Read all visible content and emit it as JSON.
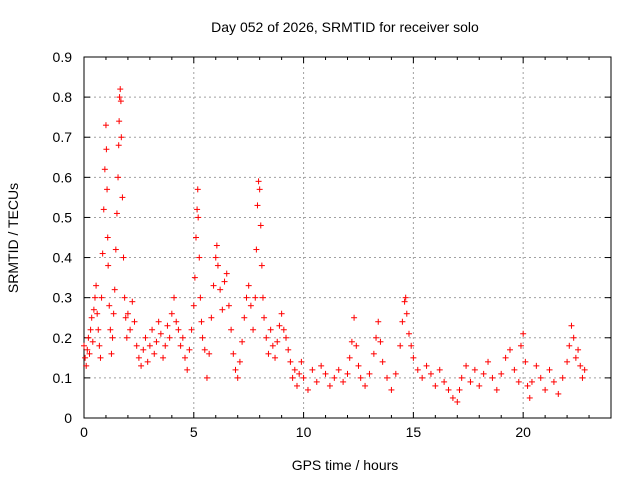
{
  "chart_data": {
    "type": "scatter",
    "title": "Day 052 of 2026, SRMTID for receiver solo",
    "xlabel": "GPS time / hours",
    "ylabel": "SRMTID / TECUs",
    "xlim": [
      0,
      24
    ],
    "ylim": [
      0,
      0.9
    ],
    "xticks": [
      0,
      5,
      10,
      15,
      20
    ],
    "yticks": [
      0,
      0.1,
      0.2,
      0.3,
      0.4,
      0.5,
      0.6,
      0.7,
      0.8,
      0.9
    ],
    "xtick_labels": [
      "0",
      "5",
      "10",
      "15",
      "20"
    ],
    "ytick_labels": [
      "0",
      "0.1",
      "0.2",
      "0.3",
      "0.4",
      "0.5",
      "0.6",
      "0.7",
      "0.8",
      "0.9"
    ],
    "grid": true,
    "marker": "+",
    "series": [
      {
        "name": "SRMTID",
        "color": "#ff0000",
        "points": [
          [
            0.0,
            0.18
          ],
          [
            0.05,
            0.15
          ],
          [
            0.1,
            0.13
          ],
          [
            0.15,
            0.17
          ],
          [
            0.2,
            0.2
          ],
          [
            0.25,
            0.16
          ],
          [
            0.3,
            0.22
          ],
          [
            0.35,
            0.25
          ],
          [
            0.4,
            0.19
          ],
          [
            0.45,
            0.27
          ],
          [
            0.5,
            0.3
          ],
          [
            0.55,
            0.33
          ],
          [
            0.6,
            0.26
          ],
          [
            0.65,
            0.22
          ],
          [
            0.7,
            0.18
          ],
          [
            0.75,
            0.15
          ],
          [
            0.8,
            0.3
          ],
          [
            0.85,
            0.41
          ],
          [
            0.9,
            0.52
          ],
          [
            0.95,
            0.62
          ],
          [
            1.0,
            0.73
          ],
          [
            1.02,
            0.67
          ],
          [
            1.05,
            0.57
          ],
          [
            1.08,
            0.45
          ],
          [
            1.1,
            0.38
          ],
          [
            1.15,
            0.28
          ],
          [
            1.2,
            0.22
          ],
          [
            1.25,
            0.16
          ],
          [
            1.3,
            0.2
          ],
          [
            1.35,
            0.26
          ],
          [
            1.4,
            0.32
          ],
          [
            1.45,
            0.42
          ],
          [
            1.5,
            0.51
          ],
          [
            1.55,
            0.6
          ],
          [
            1.58,
            0.68
          ],
          [
            1.6,
            0.74
          ],
          [
            1.62,
            0.8
          ],
          [
            1.65,
            0.82
          ],
          [
            1.68,
            0.79
          ],
          [
            1.7,
            0.7
          ],
          [
            1.75,
            0.55
          ],
          [
            1.8,
            0.4
          ],
          [
            1.85,
            0.3
          ],
          [
            1.9,
            0.25
          ],
          [
            1.95,
            0.2
          ],
          [
            2.0,
            0.26
          ],
          [
            2.1,
            0.22
          ],
          [
            2.2,
            0.29
          ],
          [
            2.3,
            0.24
          ],
          [
            2.4,
            0.18
          ],
          [
            2.5,
            0.15
          ],
          [
            2.6,
            0.13
          ],
          [
            2.7,
            0.17
          ],
          [
            2.8,
            0.2
          ],
          [
            2.9,
            0.14
          ],
          [
            3.0,
            0.18
          ],
          [
            3.1,
            0.22
          ],
          [
            3.2,
            0.16
          ],
          [
            3.3,
            0.19
          ],
          [
            3.4,
            0.24
          ],
          [
            3.5,
            0.21
          ],
          [
            3.6,
            0.15
          ],
          [
            3.7,
            0.18
          ],
          [
            3.8,
            0.23
          ],
          [
            3.9,
            0.2
          ],
          [
            4.0,
            0.26
          ],
          [
            4.1,
            0.3
          ],
          [
            4.2,
            0.24
          ],
          [
            4.3,
            0.22
          ],
          [
            4.4,
            0.18
          ],
          [
            4.5,
            0.2
          ],
          [
            4.6,
            0.15
          ],
          [
            4.7,
            0.12
          ],
          [
            4.8,
            0.17
          ],
          [
            4.9,
            0.22
          ],
          [
            5.0,
            0.28
          ],
          [
            5.05,
            0.35
          ],
          [
            5.1,
            0.45
          ],
          [
            5.15,
            0.52
          ],
          [
            5.18,
            0.57
          ],
          [
            5.2,
            0.5
          ],
          [
            5.25,
            0.4
          ],
          [
            5.3,
            0.3
          ],
          [
            5.35,
            0.24
          ],
          [
            5.4,
            0.2
          ],
          [
            5.5,
            0.17
          ],
          [
            5.6,
            0.1
          ],
          [
            5.7,
            0.16
          ],
          [
            5.8,
            0.25
          ],
          [
            5.9,
            0.33
          ],
          [
            6.0,
            0.4
          ],
          [
            6.05,
            0.43
          ],
          [
            6.1,
            0.38
          ],
          [
            6.2,
            0.32
          ],
          [
            6.3,
            0.27
          ],
          [
            6.4,
            0.34
          ],
          [
            6.5,
            0.36
          ],
          [
            6.6,
            0.28
          ],
          [
            6.7,
            0.22
          ],
          [
            6.8,
            0.16
          ],
          [
            6.9,
            0.12
          ],
          [
            7.0,
            0.1
          ],
          [
            7.1,
            0.14
          ],
          [
            7.2,
            0.19
          ],
          [
            7.3,
            0.25
          ],
          [
            7.4,
            0.3
          ],
          [
            7.5,
            0.33
          ],
          [
            7.6,
            0.28
          ],
          [
            7.7,
            0.22
          ],
          [
            7.8,
            0.3
          ],
          [
            7.85,
            0.42
          ],
          [
            7.9,
            0.53
          ],
          [
            7.95,
            0.59
          ],
          [
            8.0,
            0.57
          ],
          [
            8.05,
            0.48
          ],
          [
            8.1,
            0.38
          ],
          [
            8.15,
            0.3
          ],
          [
            8.2,
            0.25
          ],
          [
            8.3,
            0.2
          ],
          [
            8.4,
            0.16
          ],
          [
            8.5,
            0.22
          ],
          [
            8.6,
            0.18
          ],
          [
            8.7,
            0.15
          ],
          [
            8.8,
            0.19
          ],
          [
            8.9,
            0.23
          ],
          [
            9.0,
            0.26
          ],
          [
            9.1,
            0.22
          ],
          [
            9.2,
            0.2
          ],
          [
            9.3,
            0.17
          ],
          [
            9.4,
            0.14
          ],
          [
            9.5,
            0.1
          ],
          [
            9.6,
            0.12
          ],
          [
            9.7,
            0.08
          ],
          [
            9.8,
            0.11
          ],
          [
            9.9,
            0.14
          ],
          [
            10.0,
            0.1
          ],
          [
            10.2,
            0.07
          ],
          [
            10.4,
            0.12
          ],
          [
            10.6,
            0.09
          ],
          [
            10.8,
            0.13
          ],
          [
            11.0,
            0.11
          ],
          [
            11.2,
            0.08
          ],
          [
            11.4,
            0.1
          ],
          [
            11.6,
            0.12
          ],
          [
            11.8,
            0.09
          ],
          [
            12.0,
            0.11
          ],
          [
            12.1,
            0.15
          ],
          [
            12.2,
            0.19
          ],
          [
            12.3,
            0.25
          ],
          [
            12.4,
            0.18
          ],
          [
            12.5,
            0.13
          ],
          [
            12.6,
            0.1
          ],
          [
            12.8,
            0.08
          ],
          [
            13.0,
            0.11
          ],
          [
            13.2,
            0.16
          ],
          [
            13.3,
            0.2
          ],
          [
            13.4,
            0.24
          ],
          [
            13.5,
            0.19
          ],
          [
            13.6,
            0.14
          ],
          [
            13.8,
            0.1
          ],
          [
            14.0,
            0.07
          ],
          [
            14.2,
            0.11
          ],
          [
            14.4,
            0.18
          ],
          [
            14.5,
            0.24
          ],
          [
            14.6,
            0.29
          ],
          [
            14.65,
            0.3
          ],
          [
            14.7,
            0.26
          ],
          [
            14.8,
            0.21
          ],
          [
            14.9,
            0.18
          ],
          [
            15.0,
            0.15
          ],
          [
            15.2,
            0.12
          ],
          [
            15.4,
            0.1
          ],
          [
            15.6,
            0.13
          ],
          [
            15.8,
            0.11
          ],
          [
            16.0,
            0.08
          ],
          [
            16.2,
            0.12
          ],
          [
            16.4,
            0.09
          ],
          [
            16.6,
            0.07
          ],
          [
            16.8,
            0.05
          ],
          [
            17.0,
            0.04
          ],
          [
            17.1,
            0.07
          ],
          [
            17.2,
            0.1
          ],
          [
            17.4,
            0.13
          ],
          [
            17.6,
            0.09
          ],
          [
            17.8,
            0.12
          ],
          [
            18.0,
            0.08
          ],
          [
            18.2,
            0.11
          ],
          [
            18.4,
            0.14
          ],
          [
            18.6,
            0.1
          ],
          [
            18.8,
            0.07
          ],
          [
            19.0,
            0.11
          ],
          [
            19.2,
            0.15
          ],
          [
            19.4,
            0.17
          ],
          [
            19.6,
            0.12
          ],
          [
            19.8,
            0.09
          ],
          [
            19.9,
            0.18
          ],
          [
            20.0,
            0.21
          ],
          [
            20.1,
            0.14
          ],
          [
            20.2,
            0.08
          ],
          [
            20.3,
            0.05
          ],
          [
            20.4,
            0.09
          ],
          [
            20.6,
            0.13
          ],
          [
            20.8,
            0.1
          ],
          [
            21.0,
            0.07
          ],
          [
            21.2,
            0.12
          ],
          [
            21.4,
            0.09
          ],
          [
            21.6,
            0.06
          ],
          [
            21.8,
            0.1
          ],
          [
            22.0,
            0.14
          ],
          [
            22.1,
            0.18
          ],
          [
            22.2,
            0.23
          ],
          [
            22.3,
            0.2
          ],
          [
            22.4,
            0.15
          ],
          [
            22.5,
            0.17
          ],
          [
            22.6,
            0.13
          ],
          [
            22.7,
            0.1
          ],
          [
            22.8,
            0.12
          ]
        ]
      }
    ]
  }
}
